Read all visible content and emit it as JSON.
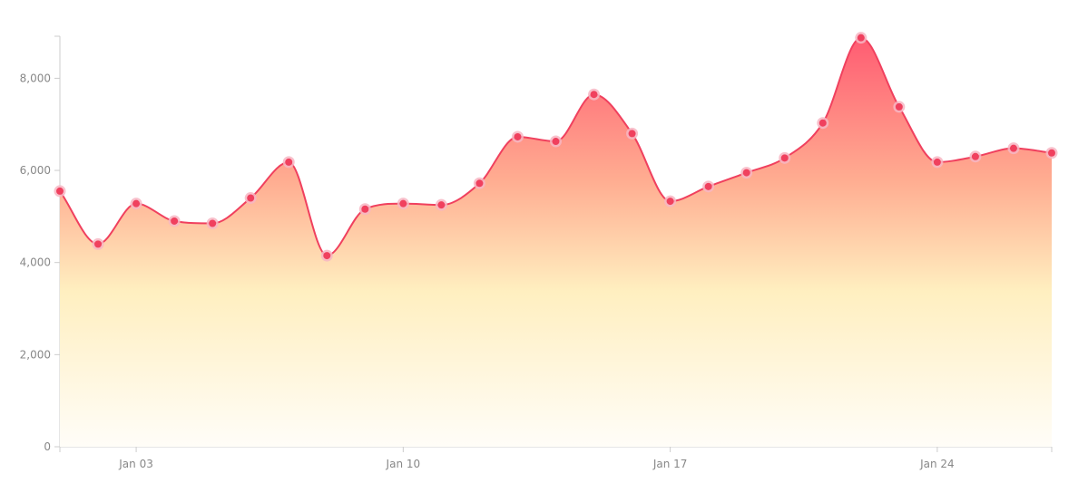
{
  "chart_data": {
    "type": "area",
    "x": [
      "Jan 01",
      "Jan 02",
      "Jan 03",
      "Jan 04",
      "Jan 05",
      "Jan 06",
      "Jan 07",
      "Jan 08",
      "Jan 09",
      "Jan 10",
      "Jan 11",
      "Jan 12",
      "Jan 13",
      "Jan 14",
      "Jan 15",
      "Jan 16",
      "Jan 17",
      "Jan 18",
      "Jan 19",
      "Jan 20",
      "Jan 21",
      "Jan 22",
      "Jan 23",
      "Jan 24",
      "Jan 25",
      "Jan 26",
      "Jan 27"
    ],
    "values": [
      5550,
      4400,
      5280,
      4900,
      4850,
      5400,
      6180,
      4150,
      5160,
      5280,
      5250,
      5720,
      6730,
      6630,
      7650,
      6800,
      5330,
      5650,
      5950,
      6270,
      7030,
      8880,
      7380,
      6180,
      6300,
      6480,
      6380
    ],
    "title": "",
    "xlabel": "",
    "ylabel": "",
    "ylim": [
      0,
      9700
    ],
    "yticks": [
      0,
      2000,
      4000,
      6000,
      8000
    ],
    "ytick_labels": [
      "0",
      "2,000",
      "4,000",
      "6,000",
      "8,000"
    ],
    "xticks": [
      "Jan 03",
      "Jan 10",
      "Jan 17",
      "Jan 24"
    ],
    "grid": false,
    "legend": "none",
    "colors": {
      "line": "#f0405e",
      "point": "#f0405e",
      "point_halo": "#f7b6c3",
      "fill_top": "#ff5c72",
      "fill_mid_upper": "#ffad91",
      "fill_mid_lower": "#ffefc0",
      "fill_bottom": "#fffdf8",
      "axis": "#cccccc",
      "tick_text": "#888888"
    }
  }
}
